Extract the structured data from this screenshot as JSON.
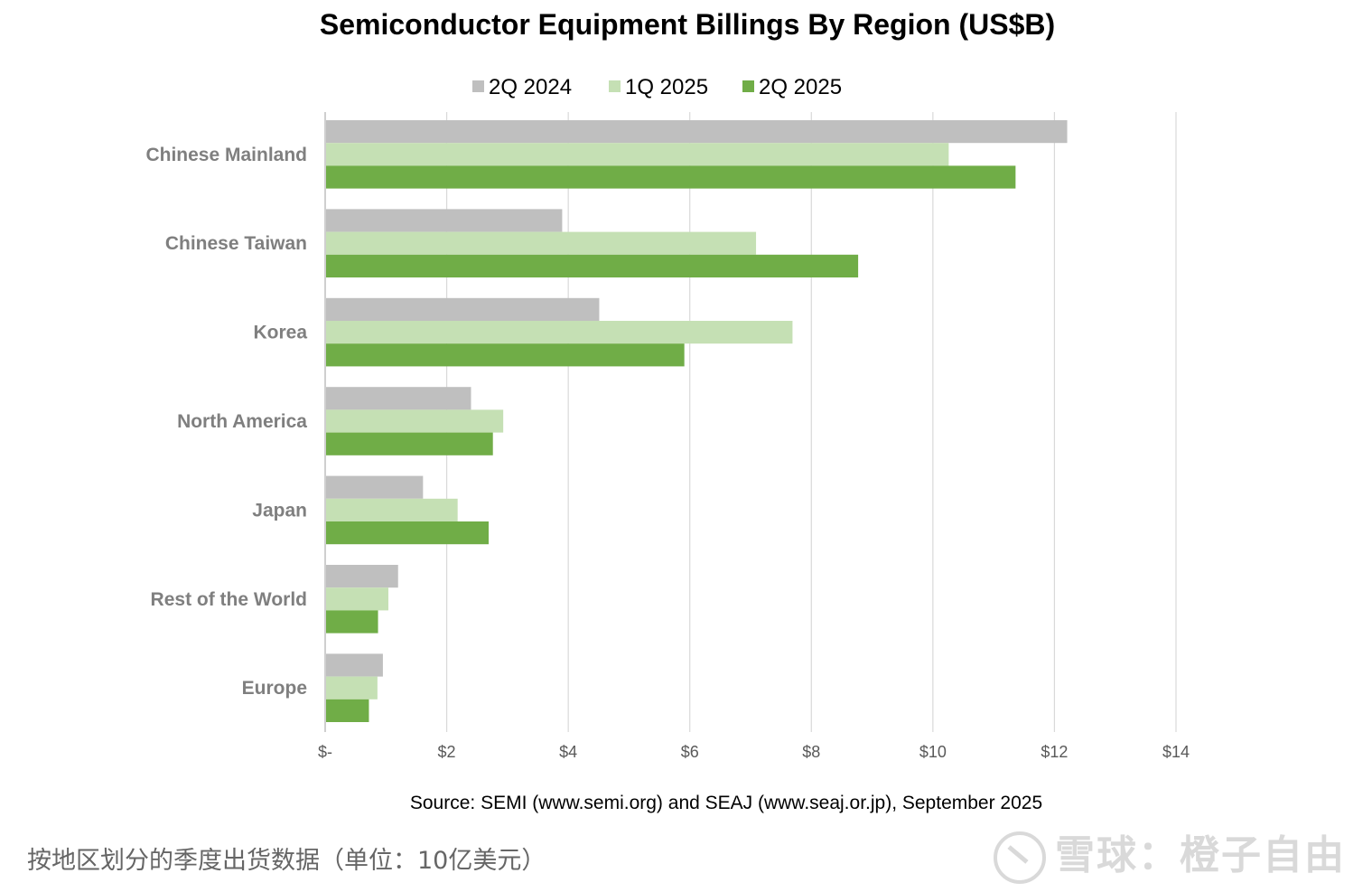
{
  "chart_data": {
    "type": "bar",
    "orientation": "horizontal",
    "title": "Semiconductor Equipment Billings By Region (US$B)",
    "categories": [
      "Chinese Mainland",
      "Chinese Taiwan",
      "Korea",
      "North America",
      "Japan",
      "Rest of the World",
      "Europe"
    ],
    "series": [
      {
        "name": "2Q 2024",
        "color": "#bfbfbf",
        "values": [
          12.21,
          3.9,
          4.51,
          2.4,
          1.61,
          1.2,
          0.95
        ]
      },
      {
        "name": "1Q 2025",
        "color": "#c5e0b4",
        "values": [
          10.26,
          7.09,
          7.69,
          2.93,
          2.18,
          1.04,
          0.86
        ]
      },
      {
        "name": "2Q 2025",
        "color": "#70ad47",
        "values": [
          11.36,
          8.77,
          5.91,
          2.76,
          2.69,
          0.87,
          0.72
        ]
      }
    ],
    "xlim": [
      0,
      14
    ],
    "xticks": [
      0,
      2,
      4,
      6,
      8,
      10,
      12,
      14
    ],
    "xtick_labels": [
      "$-",
      "$2",
      "$4",
      "$6",
      "$8",
      "$10",
      "$12",
      "$14"
    ],
    "grid": "vertical",
    "legend": "top-center",
    "xlabel": "",
    "ylabel": "",
    "source": "Source: SEMI (www.semi.org) and SEAJ (www.seaj.or.jp), September 2025"
  },
  "caption": "按地区划分的季度出货数据（单位：10亿美元）",
  "watermark": "雪球：橙子自由"
}
